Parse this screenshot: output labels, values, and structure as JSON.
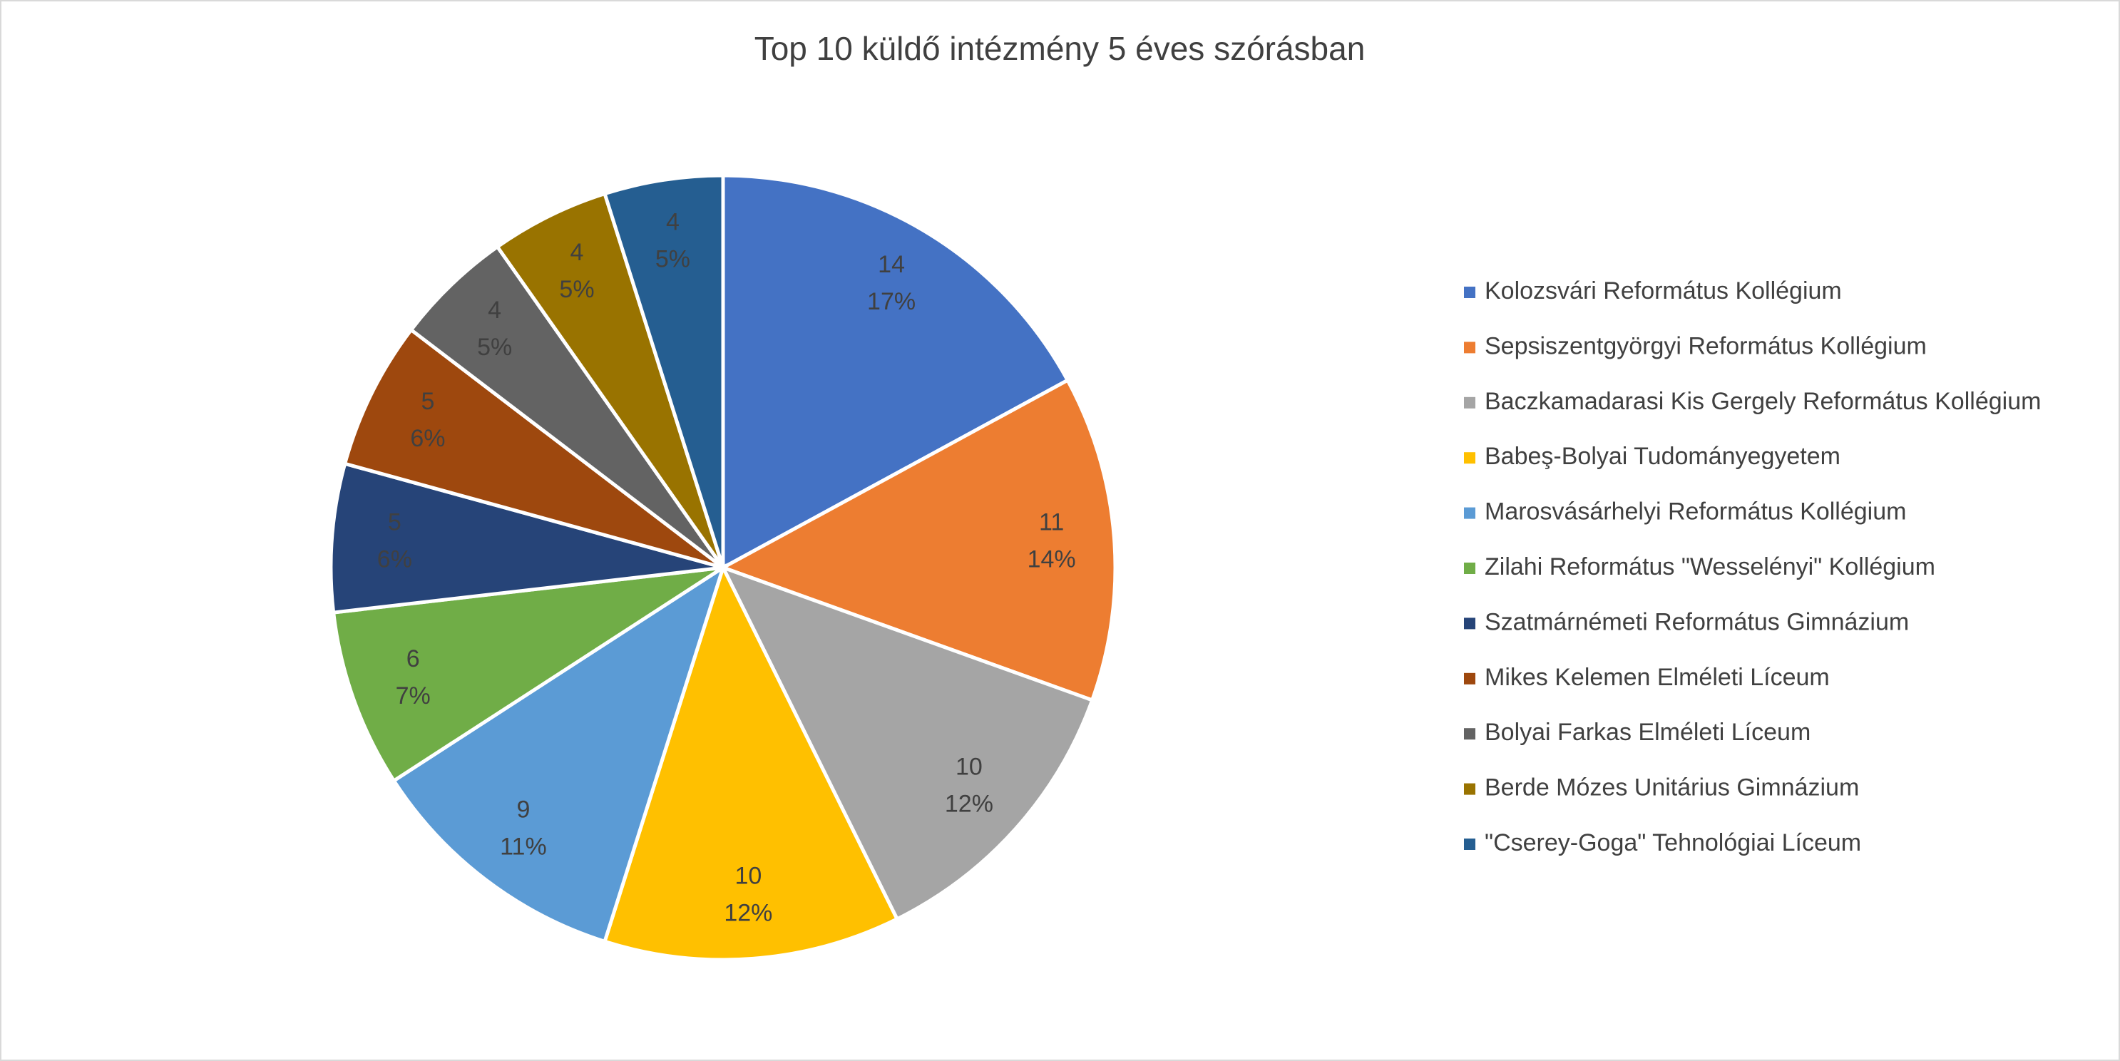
{
  "chart_data": {
    "type": "pie",
    "title": "Top 10 küldő intézmény 5 éves szórásban",
    "categories": [
      "Kolozsvári Református Kollégium",
      "Sepsiszentgyörgyi Református Kollégium",
      "Baczkamadarasi Kis Gergely Református Kollégium",
      "Babeş-Bolyai Tudományegyetem",
      "Marosvásárhelyi Református Kollégium",
      "Zilahi Református \"Wesselényi\" Kollégium",
      "Szatmárnémeti Református Gimnázium",
      "Mikes Kelemen Elméleti Líceum",
      "Bolyai Farkas Elméleti Líceum",
      "Berde Mózes Unitárius Gimnázium",
      "\"Cserey-Goga\" Tehnológiai Líceum"
    ],
    "values": [
      14,
      11,
      10,
      10,
      9,
      6,
      5,
      5,
      4,
      4,
      4
    ],
    "percent_labels": [
      "17%",
      "14%",
      "12%",
      "12%",
      "11%",
      "7%",
      "6%",
      "6%",
      "5%",
      "5%",
      "5%"
    ],
    "colors": [
      "#4472c4",
      "#ed7d31",
      "#a5a5a5",
      "#ffc000",
      "#5b9bd5",
      "#70ad47",
      "#264478",
      "#9e480e",
      "#636363",
      "#997300",
      "#255e91"
    ],
    "legend": "right"
  }
}
